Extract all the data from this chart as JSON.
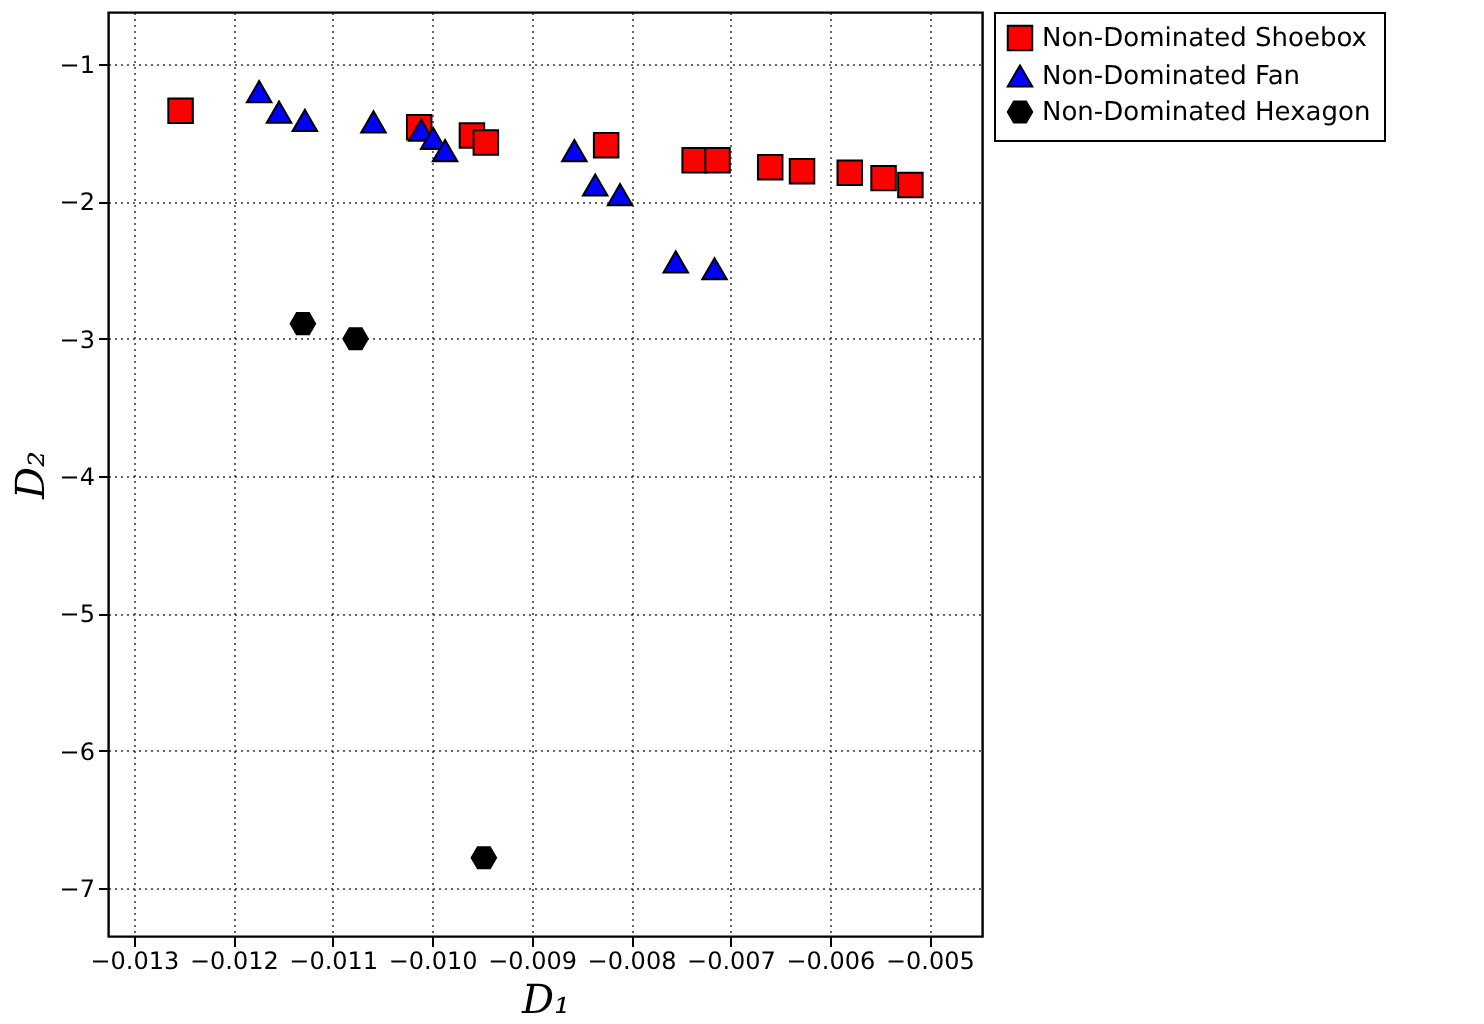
{
  "chart_data": {
    "type": "scatter",
    "xlabel": "D₁",
    "ylabel": "D₂",
    "xlim": [
      -0.01326,
      -0.00447
    ],
    "ylim": [
      -7.35,
      -0.62
    ],
    "xticks": [
      {
        "value": -0.013,
        "label": "−0.013"
      },
      {
        "value": -0.012,
        "label": "−0.012"
      },
      {
        "value": -0.011,
        "label": "−0.011"
      },
      {
        "value": -0.01,
        "label": "−0.010"
      },
      {
        "value": -0.009,
        "label": "−0.009"
      },
      {
        "value": -0.008,
        "label": "−0.008"
      },
      {
        "value": -0.007,
        "label": "−0.007"
      },
      {
        "value": -0.006,
        "label": "−0.006"
      },
      {
        "value": -0.005,
        "label": "−0.005"
      }
    ],
    "yticks": [
      -7,
      -6,
      -5,
      -4,
      -3,
      -2,
      -1
    ],
    "grid": true,
    "legend": "top right",
    "series": [
      {
        "name": "Non-Dominated Shoebox",
        "color": "#ff0000",
        "marker": "square",
        "x": [
          -0.01253,
          -0.01013,
          -0.0096,
          -0.00946,
          -0.00825,
          -0.00736,
          -0.00713,
          -0.0066,
          -0.00628,
          -0.0058,
          -0.00546,
          -0.00519
        ],
        "values": [
          -1.34,
          -1.46,
          -1.52,
          -1.57,
          -1.59,
          -1.7,
          -1.7,
          -1.75,
          -1.78,
          -1.79,
          -1.83,
          -1.88
        ]
      },
      {
        "name": "Non-Dominated Fan",
        "color": "#0000ff",
        "marker": "triangle",
        "x": [
          -0.01174,
          -0.01154,
          -0.01128,
          -0.01059,
          -0.01011,
          -0.00999,
          -0.00987,
          -0.00857,
          -0.00836,
          -0.00811,
          -0.00755,
          -0.00716
        ],
        "values": [
          -1.2,
          -1.35,
          -1.41,
          -1.42,
          -1.48,
          -1.54,
          -1.63,
          -1.63,
          -1.88,
          -1.95,
          -2.44,
          -2.49
        ]
      },
      {
        "name": "Non-Dominated Hexagon",
        "color": "#000000",
        "x": [
          -0.0113,
          -0.01077,
          -0.00948
        ],
        "values": [
          -2.89,
          -3.0,
          -6.78
        ]
      }
    ]
  }
}
